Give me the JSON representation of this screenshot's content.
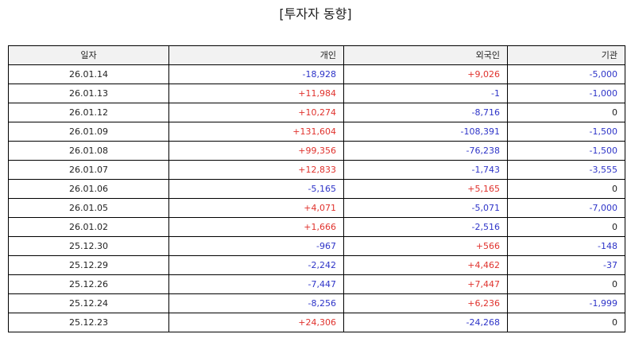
{
  "title": "[투자자 동향]",
  "columns": [
    "일자",
    "개인",
    "외국인",
    "기관"
  ],
  "colors": {
    "positive": "#e0322d",
    "negative": "#2e34c8",
    "neutral": "#222222"
  },
  "rows": [
    [
      "26.01.14",
      "-18,928",
      "+9,026",
      "-5,000"
    ],
    [
      "26.01.13",
      "+11,984",
      "-1",
      "-1,000"
    ],
    [
      "26.01.12",
      "+10,274",
      "-8,716",
      "0"
    ],
    [
      "26.01.09",
      "+131,604",
      "-108,391",
      "-1,500"
    ],
    [
      "26.01.08",
      "+99,356",
      "-76,238",
      "-1,500"
    ],
    [
      "26.01.07",
      "+12,833",
      "-1,743",
      "-3,555"
    ],
    [
      "26.01.06",
      "-5,165",
      "+5,165",
      "0"
    ],
    [
      "26.01.05",
      "+4,071",
      "-5,071",
      "-7,000"
    ],
    [
      "26.01.02",
      "+1,666",
      "-2,516",
      "0"
    ],
    [
      "25.12.30",
      "-967",
      "+566",
      "-148"
    ],
    [
      "25.12.29",
      "-2,242",
      "+4,462",
      "-37"
    ],
    [
      "25.12.26",
      "-7,447",
      "+7,447",
      "0"
    ],
    [
      "25.12.24",
      "-8,256",
      "+6,236",
      "-1,999"
    ],
    [
      "25.12.23",
      "+24,306",
      "-24,268",
      "0"
    ]
  ]
}
